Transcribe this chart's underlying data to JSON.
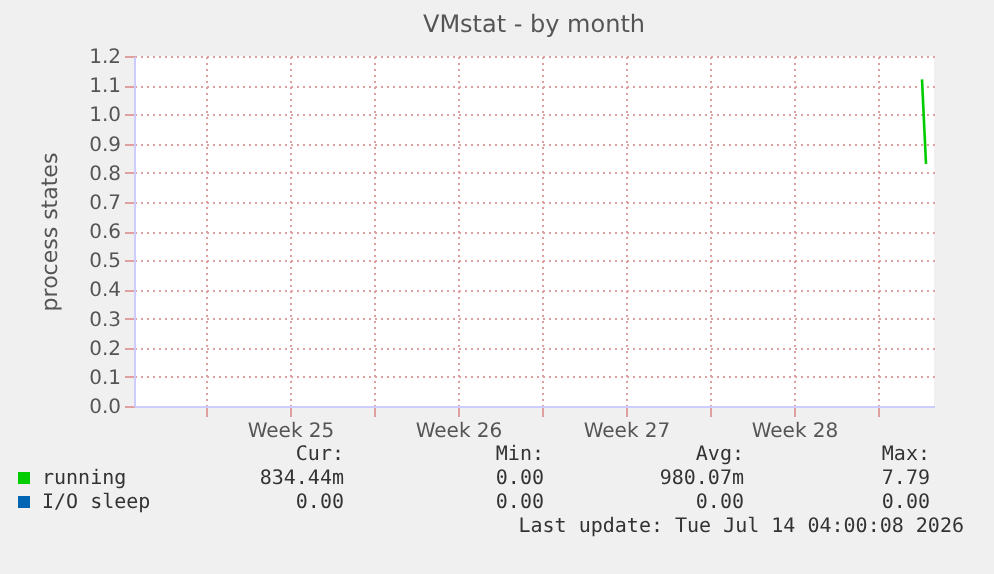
{
  "chart_data": {
    "type": "line",
    "title": "VMstat - by month",
    "ylabel": "process states",
    "xlim": [
      "2026-06-12",
      "2026-07-15T08:00"
    ],
    "xticks": [
      {
        "value": "2026-06-15",
        "label": null
      },
      {
        "value": "2026-06-18T12:00",
        "label": "Week 25"
      },
      {
        "value": "2026-06-22",
        "label": null
      },
      {
        "value": "2026-06-25T12:00",
        "label": "Week 26"
      },
      {
        "value": "2026-06-29",
        "label": null
      },
      {
        "value": "2026-07-02T12:00",
        "label": "Week 27"
      },
      {
        "value": "2026-07-06",
        "label": null
      },
      {
        "value": "2026-07-09T12:00",
        "label": "Week 28"
      },
      {
        "value": "2026-07-13",
        "label": null
      }
    ],
    "ylim": [
      0,
      1.2
    ],
    "yticks": [
      {
        "value": 0,
        "label": "0.0"
      },
      0.1,
      0.2,
      0.3,
      0.4,
      0.5,
      0.6,
      0.7,
      0.8,
      0.9,
      {
        "value": 1,
        "label": "1.0"
      },
      1.1,
      1.2
    ],
    "grid": true,
    "legend": "bottom left",
    "series": [
      {
        "name": "running",
        "color": "#00cc00",
        "x": [
          "2026-07-14T20:00",
          "2026-07-15T00:00"
        ],
        "values": [
          1.12,
          0.83
        ]
      },
      {
        "name": "I/O sleep",
        "color": "#0066b3"
      }
    ],
    "annotations": [
      "Cur:",
      "Min:",
      "Avg:",
      "Max:",
      "834.44m",
      "0.00",
      "980.07m",
      "7.79",
      "0.00",
      "0.00",
      "0.00",
      "0.00",
      "Last update: Tue Jul 14 04:00:08 2026"
    ]
  }
}
